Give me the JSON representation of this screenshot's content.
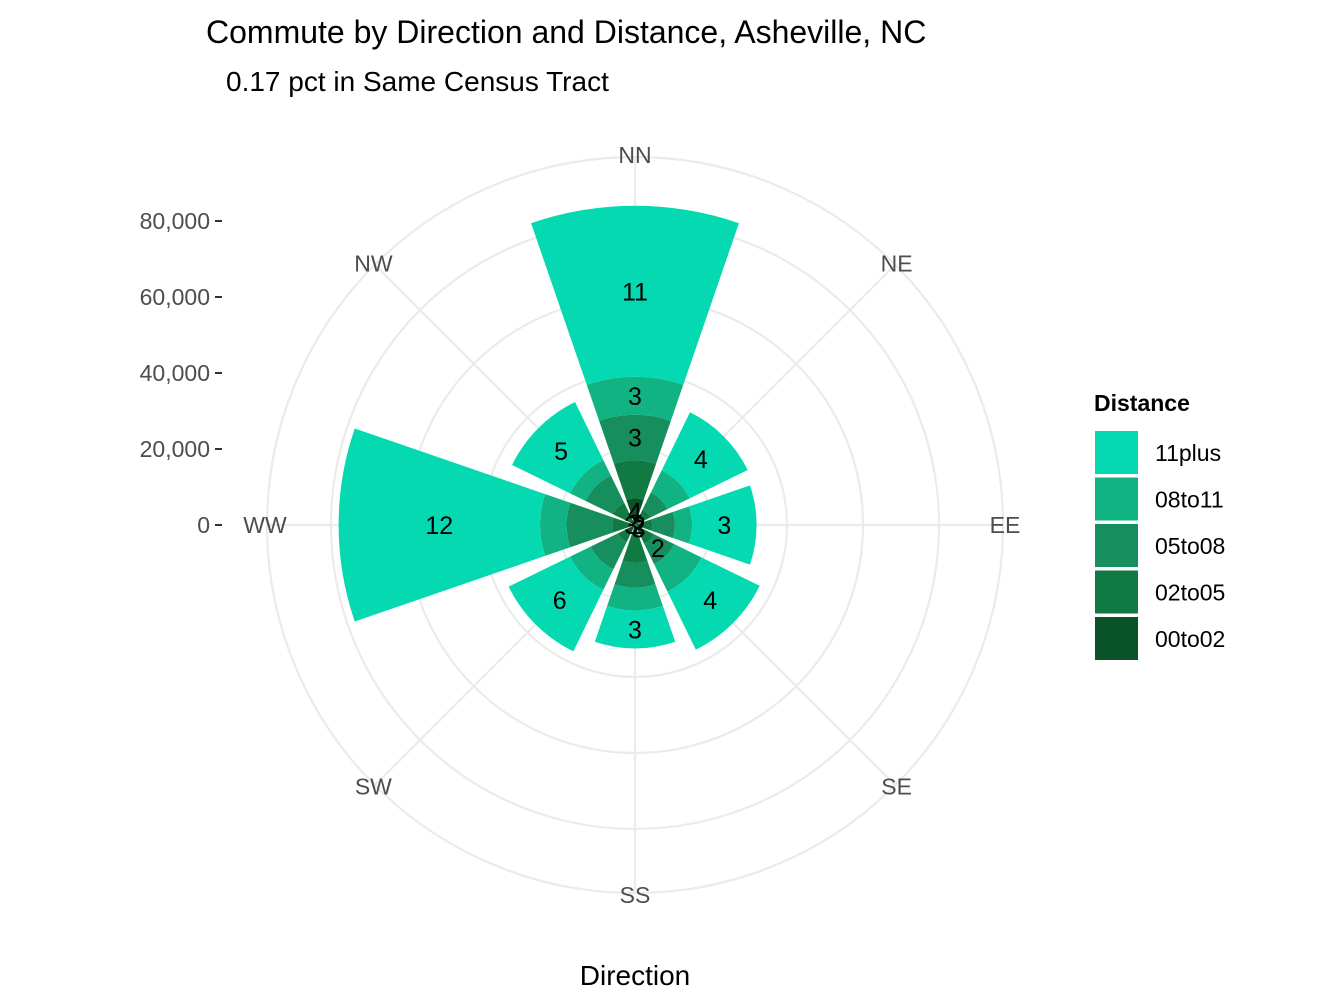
{
  "chart_data": {
    "type": "polar-stacked-bar",
    "title": "Commute by Direction and Distance, Asheville, NC",
    "subtitle": "0.17 pct in Same Census Tract",
    "xlabel": "Direction",
    "ylabel": "",
    "directions": [
      "NN",
      "NE",
      "EE",
      "SE",
      "SS",
      "SW",
      "WW",
      "NW"
    ],
    "radial_ticks": [
      0,
      20000,
      40000,
      60000,
      80000
    ],
    "radial_tick_labels": [
      "0",
      "20,000",
      "40,000",
      "60,000",
      "80,000"
    ],
    "ylim": [
      0,
      95000
    ],
    "legend": {
      "title": "Distance",
      "position": "right",
      "entries": [
        "11plus",
        "08to11",
        "05to08",
        "02to05",
        "00to02"
      ]
    },
    "colors": {
      "00to02": "#0a5227",
      "02to05": "#117a42",
      "05to08": "#168e5d",
      "08to11": "#12b383",
      "11plus": "#05d9b1"
    },
    "series": [
      {
        "name": "00to02",
        "values": [
          7000,
          1500,
          2000,
          2500,
          2500,
          2500,
          2000,
          1500
        ]
      },
      {
        "name": "02to05",
        "values": [
          10000,
          3000,
          2500,
          3000,
          7500,
          2500,
          4000,
          5000
        ]
      },
      {
        "name": "05to08",
        "values": [
          12000,
          5000,
          6000,
          6000,
          6500,
          8000,
          12000,
          8000
        ]
      },
      {
        "name": "08to11",
        "values": [
          10000,
          6500,
          4500,
          8000,
          6000,
          6000,
          7000,
          4500
        ]
      },
      {
        "name": "11plus",
        "values": [
          45000,
          17000,
          17000,
          17000,
          10000,
          18000,
          53000,
          17000
        ]
      }
    ],
    "bar_labels": [
      {
        "direction": "NN",
        "series": "00to02",
        "label": "4"
      },
      {
        "direction": "NN",
        "series": "05to08",
        "label": "3"
      },
      {
        "direction": "NN",
        "series": "08to11",
        "label": "3"
      },
      {
        "direction": "NN",
        "series": "11plus",
        "label": "11"
      },
      {
        "direction": "NE",
        "series": "11plus",
        "label": "4"
      },
      {
        "direction": "EE",
        "series": "00to02",
        "label": "2"
      },
      {
        "direction": "EE",
        "series": "11plus",
        "label": "3"
      },
      {
        "direction": "SE",
        "series": "00to02",
        "label": "3"
      },
      {
        "direction": "SE",
        "series": "05to08",
        "label": "2"
      },
      {
        "direction": "SE",
        "series": "11plus",
        "label": "4"
      },
      {
        "direction": "SS",
        "series": "11plus",
        "label": "3"
      },
      {
        "direction": "SW",
        "series": "11plus",
        "label": "6"
      },
      {
        "direction": "WW",
        "series": "00to02",
        "label": "3"
      },
      {
        "direction": "WW",
        "series": "11plus",
        "label": "12"
      },
      {
        "direction": "NW",
        "series": "11plus",
        "label": "5"
      }
    ]
  }
}
